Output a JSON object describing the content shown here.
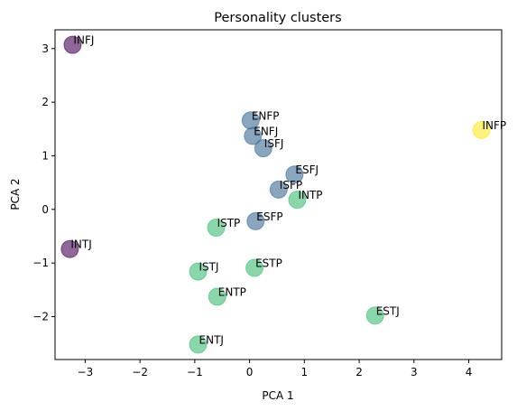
{
  "chart_data": {
    "type": "scatter",
    "title": "Personality clusters",
    "xlabel": "PCA 1",
    "ylabel": "PCA 2",
    "xlim": [
      -3.55,
      4.6
    ],
    "ylim": [
      -2.8,
      3.35
    ],
    "xticks": [
      -3,
      -2,
      -1,
      0,
      1,
      2,
      3,
      4
    ],
    "yticks": [
      -2,
      -1,
      0,
      1,
      2,
      3
    ],
    "grid": false,
    "marker_alpha": 0.6,
    "points": [
      {
        "label": "INFJ",
        "x": -3.23,
        "y": 3.07,
        "color": "#440154"
      },
      {
        "label": "INTJ",
        "x": -3.28,
        "y": -0.74,
        "color": "#440154"
      },
      {
        "label": "ENFP",
        "x": 0.02,
        "y": 1.66,
        "color": "#3b6a92"
      },
      {
        "label": "ENFJ",
        "x": 0.06,
        "y": 1.37,
        "color": "#3b6a92"
      },
      {
        "label": "ISFJ",
        "x": 0.25,
        "y": 1.14,
        "color": "#3b6a92"
      },
      {
        "label": "ESFJ",
        "x": 0.82,
        "y": 0.65,
        "color": "#3b6a92"
      },
      {
        "label": "ISFP",
        "x": 0.53,
        "y": 0.37,
        "color": "#3b6a92"
      },
      {
        "label": "ESFP",
        "x": 0.11,
        "y": -0.22,
        "color": "#3b6a92"
      },
      {
        "label": "INTP",
        "x": 0.87,
        "y": 0.18,
        "color": "#3dbc74"
      },
      {
        "label": "ISTP",
        "x": -0.61,
        "y": -0.34,
        "color": "#3dbc74"
      },
      {
        "label": "ESTP",
        "x": 0.09,
        "y": -1.09,
        "color": "#3dbc74"
      },
      {
        "label": "ISTJ",
        "x": -0.94,
        "y": -1.16,
        "color": "#3dbc74"
      },
      {
        "label": "ENTP",
        "x": -0.59,
        "y": -1.63,
        "color": "#3dbc74"
      },
      {
        "label": "ESTJ",
        "x": 2.29,
        "y": -1.98,
        "color": "#3dbc74"
      },
      {
        "label": "ENTJ",
        "x": -0.94,
        "y": -2.52,
        "color": "#3dbc74"
      },
      {
        "label": "INFP",
        "x": 4.23,
        "y": 1.48,
        "color": "#fde725"
      }
    ]
  }
}
